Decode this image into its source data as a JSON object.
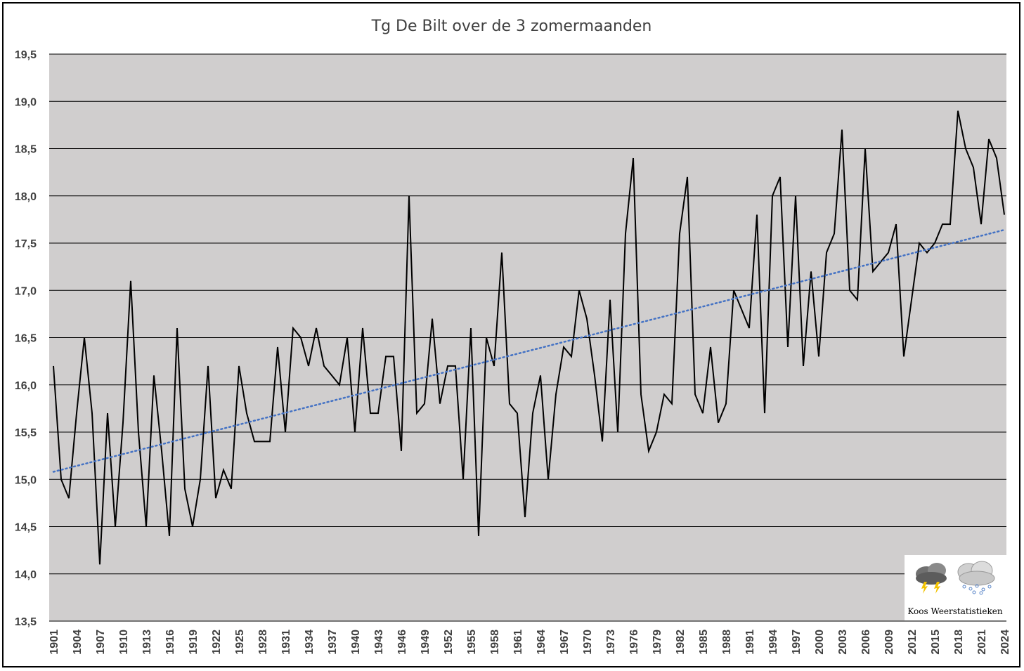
{
  "chart_data": {
    "type": "line",
    "title": "Tg De Bilt over de 3 zomermaanden",
    "xlabel": "",
    "ylabel": "",
    "ylim": [
      13.5,
      19.5
    ],
    "y_ticks": [
      "13,5",
      "14,0",
      "14,5",
      "15,0",
      "15,5",
      "16,0",
      "16,5",
      "17,0",
      "17,5",
      "18,0",
      "18,5",
      "19,0",
      "19,5"
    ],
    "x_start": 1901,
    "x_end": 2024,
    "x_ticks": [
      "1901",
      "1904",
      "1907",
      "1910",
      "1913",
      "1916",
      "1919",
      "1922",
      "1925",
      "1928",
      "1931",
      "1934",
      "1937",
      "1940",
      "1943",
      "1946",
      "1949",
      "1952",
      "1955",
      "1958",
      "1961",
      "1964",
      "1967",
      "1970",
      "1973",
      "1976",
      "1979",
      "1982",
      "1985",
      "1988",
      "1991",
      "1994",
      "1997",
      "2000",
      "2003",
      "2006",
      "2009",
      "2012",
      "2015",
      "2018",
      "2021",
      "2024"
    ],
    "grid": true,
    "colors": {
      "plot_background": "#d0cece",
      "series": "#000000",
      "trend": "#4472c4",
      "gridline": "#000000"
    },
    "series": [
      {
        "values": [
          16.2,
          15.0,
          14.8,
          15.7,
          16.5,
          15.7,
          14.1,
          15.7,
          14.5,
          15.6,
          17.1,
          15.5,
          14.5,
          16.1,
          15.3,
          14.4,
          16.6,
          14.9,
          14.5,
          15.0,
          16.2,
          14.8,
          15.1,
          14.9,
          16.2,
          15.7,
          15.4,
          15.4,
          15.4,
          16.4,
          15.5,
          16.6,
          16.5,
          16.2,
          16.6,
          16.2,
          16.1,
          16.0,
          16.5,
          15.5,
          16.6,
          15.7,
          15.7,
          16.3,
          16.3,
          15.3,
          18.0,
          15.7,
          15.8,
          16.7,
          15.8,
          16.2,
          16.2,
          15.0,
          16.6,
          14.4,
          16.5,
          16.2,
          17.4,
          15.8,
          15.7,
          14.6,
          15.7,
          16.1,
          15.0,
          15.9,
          16.4,
          16.3,
          17.0,
          16.7,
          16.1,
          15.4,
          16.9,
          15.5,
          17.6,
          18.4,
          15.9,
          15.3,
          15.5,
          15.9,
          15.8,
          17.6,
          18.2,
          15.9,
          15.7,
          16.4,
          15.6,
          15.8,
          17.0,
          16.8,
          16.6,
          17.8,
          15.7,
          18.0,
          18.2,
          16.4,
          18.0,
          16.2,
          17.2,
          16.3,
          17.4,
          17.6,
          18.7,
          17.0,
          16.9,
          18.5,
          17.2,
          17.3,
          17.4,
          17.7,
          16.3,
          16.9,
          17.5,
          17.4,
          17.5,
          17.7,
          17.7,
          18.9,
          18.5,
          18.3,
          17.7,
          18.6,
          18.4,
          17.8
        ]
      },
      {
        "type": "trend",
        "values": [
          15.08,
          17.64
        ]
      }
    ]
  },
  "watermark": {
    "text": "Koos Weerstatistieken",
    "icons": [
      "thunderstorm-cloud-icon",
      "snow-cloud-icon"
    ]
  }
}
